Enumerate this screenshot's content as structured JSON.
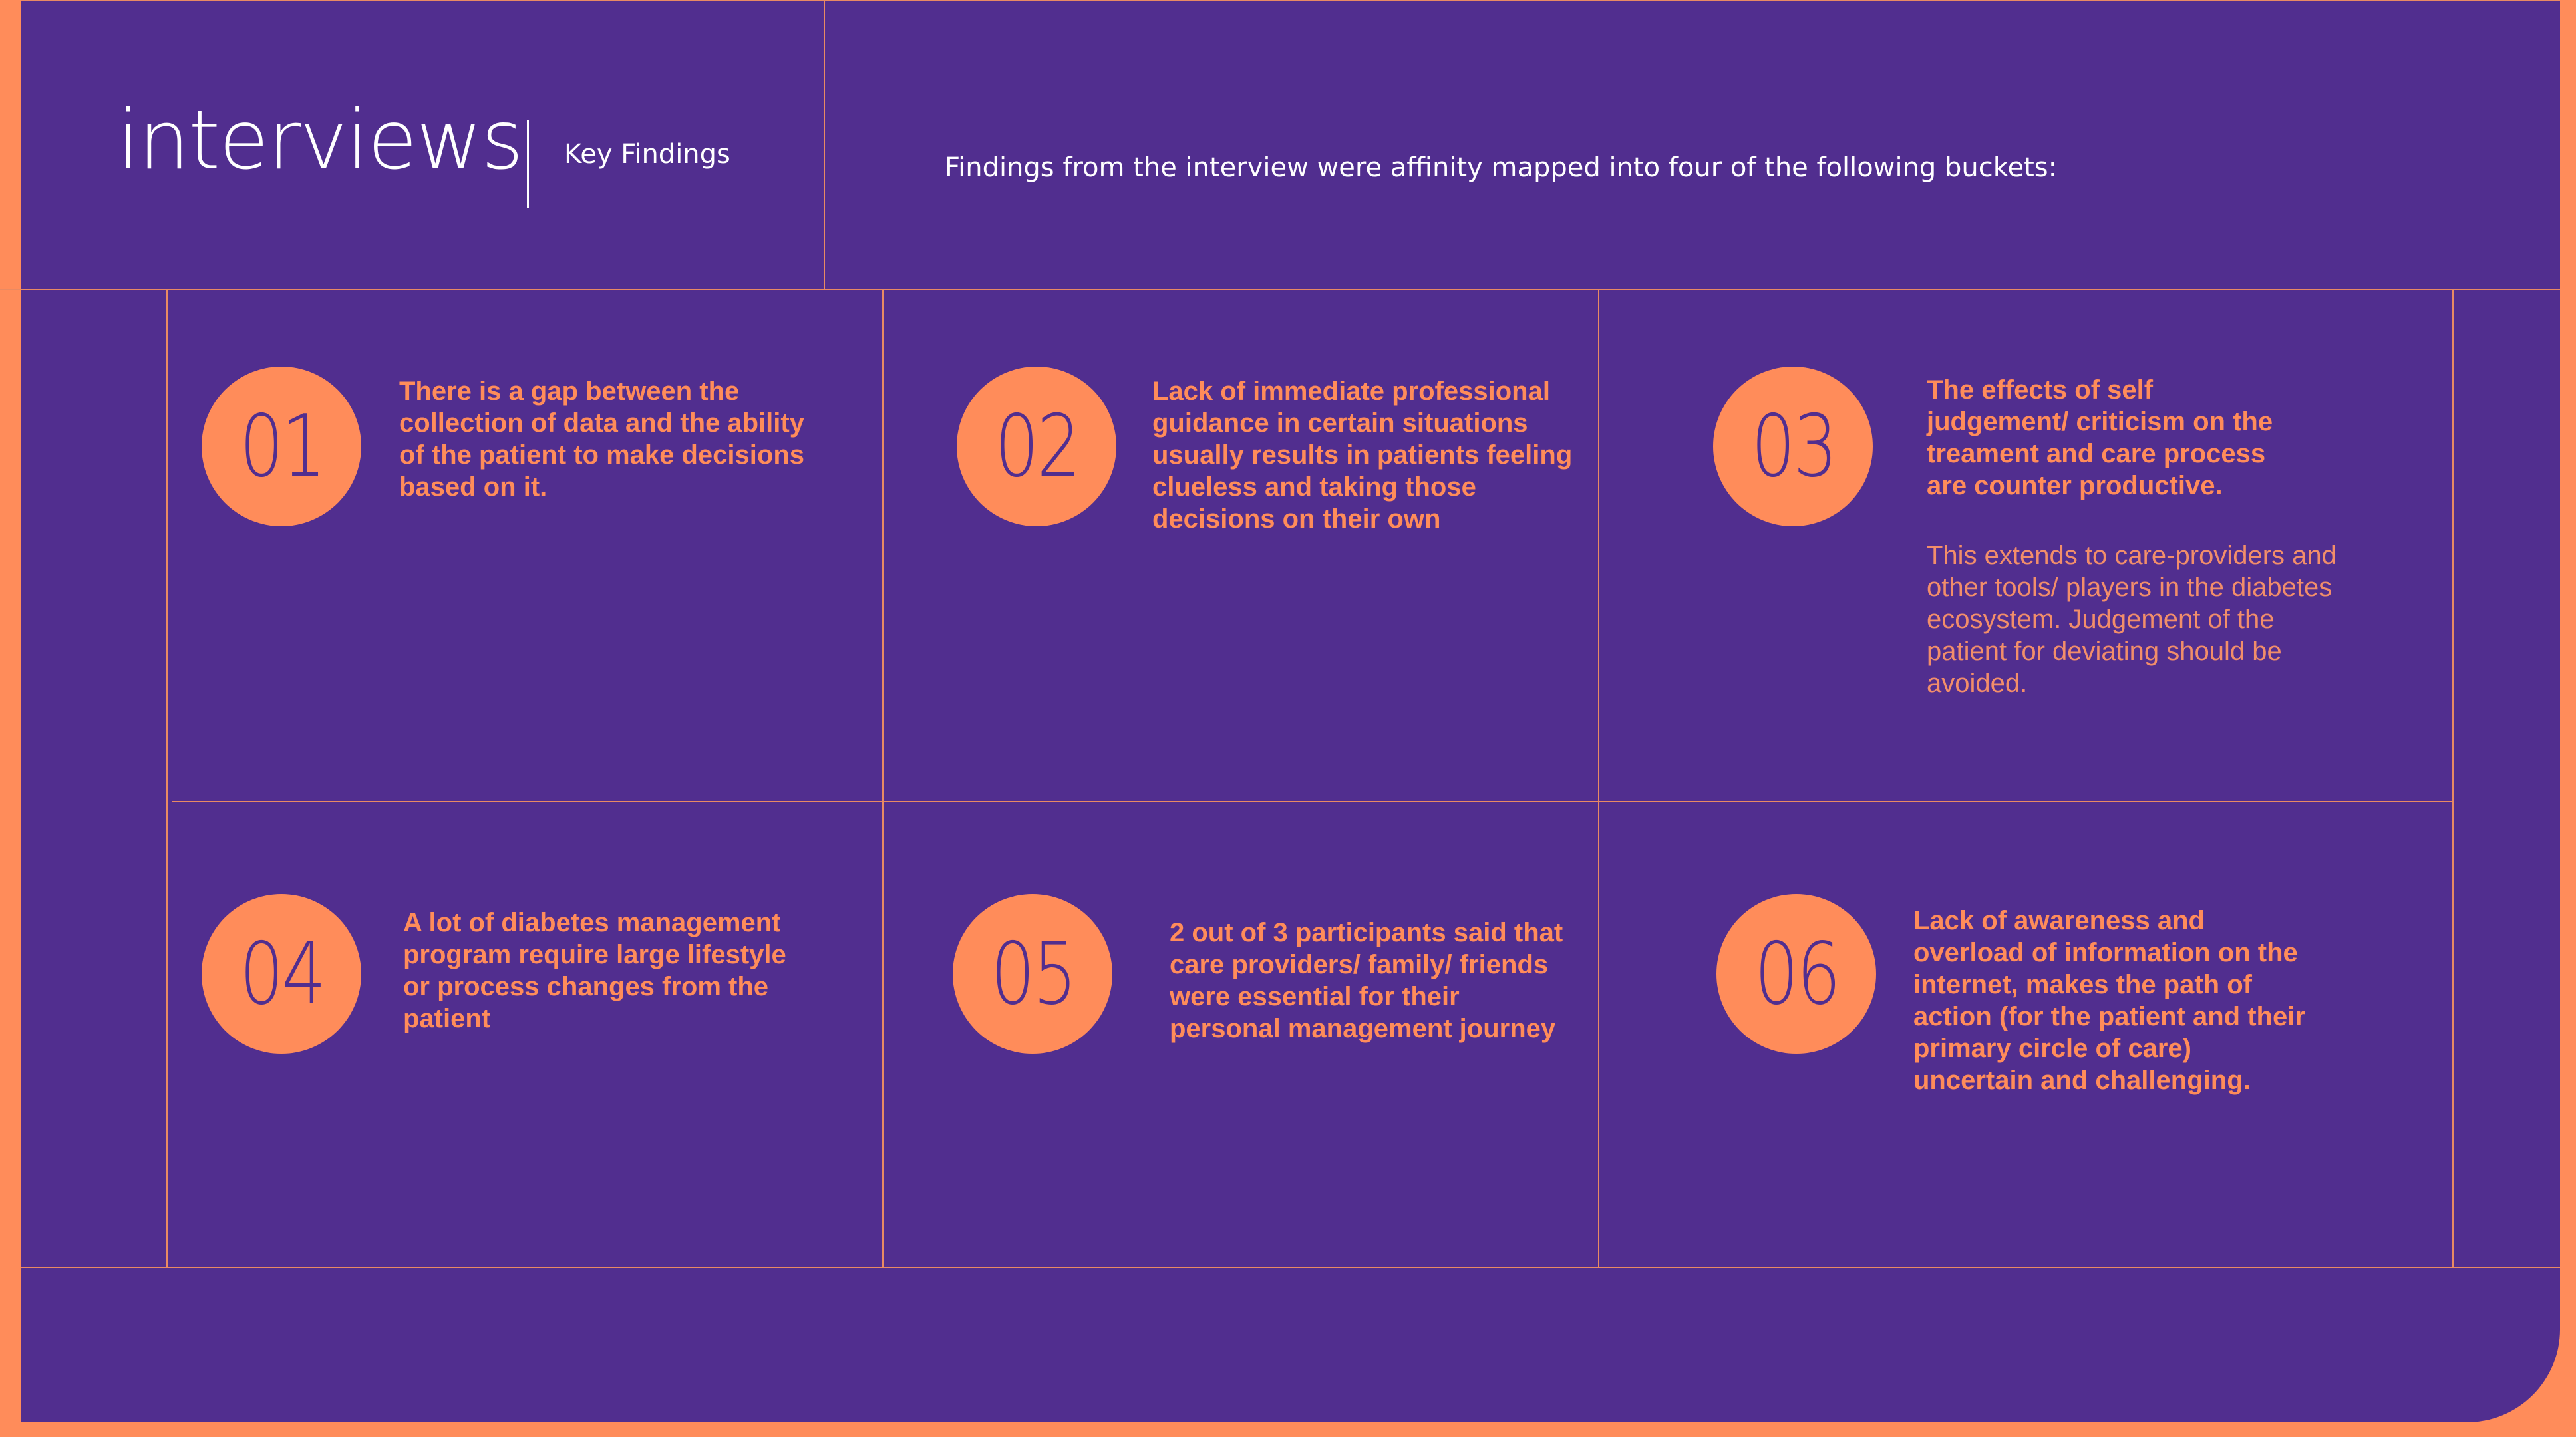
{
  "header": {
    "title": "interviews",
    "subtitle": "Key Findings",
    "intro": "Findings from the interview were affinity mapped into four of the following buckets:"
  },
  "findings": [
    {
      "number": "01",
      "text": "There is a gap between the collection of data and the ability of the patient to make decisions based on it."
    },
    {
      "number": "02",
      "text": "Lack of immediate professional guidance in certain situations usually results in patients feeling clueless and taking those decisions on their own"
    },
    {
      "number": "03",
      "text": "The effects of self judgement/ criticism on the treament and care process are counter productive.",
      "note": "This extends to care-providers and other tools/ players in the diabetes ecosystem. Judgement of the patient for deviating should be avoided."
    },
    {
      "number": "04",
      "text": "A lot of diabetes management program require large lifestyle or process changes from the patient"
    },
    {
      "number": "05",
      "text": "2 out of 3 participants said that care providers/ family/ friends were essential for their personal management journey"
    },
    {
      "number": "06",
      "text": "Lack of awareness and overload of information on the internet, makes the path of action (for the patient and their primary circle of care) uncertain and challenging."
    }
  ],
  "colors": {
    "background": "#512e8f",
    "accent": "#ff8c5a",
    "grid_line": "#e98a63",
    "text_light": "#ffffff"
  }
}
